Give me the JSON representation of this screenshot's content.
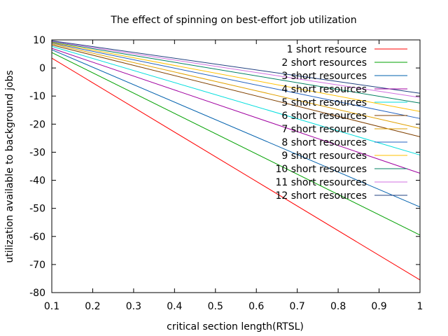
{
  "chart_data": {
    "type": "line",
    "title": "The effect of spinning on best-effort job utilization",
    "xlabel": "critical section length(RTSL)",
    "ylabel": "utilization available to background jobs",
    "xlim": [
      0.1,
      1
    ],
    "ylim": [
      -80,
      10
    ],
    "xticks": [
      "0.1",
      "0.2",
      "0.3",
      "0.4",
      "0.5",
      "0.6",
      "0.7",
      "0.8",
      "0.9",
      "1"
    ],
    "yticks": [
      "10",
      "0",
      "-10",
      "-20",
      "-30",
      "-40",
      "-50",
      "-60",
      "-70",
      "-80"
    ],
    "grid": false,
    "legend_position": "top-right",
    "series": [
      {
        "name": "1 short resource",
        "color": "#ff0000",
        "x": [
          0.1,
          1
        ],
        "y": [
          3.5,
          -75.5
        ]
      },
      {
        "name": "2 short resources",
        "color": "#00a000",
        "x": [
          0.1,
          1
        ],
        "y": [
          5.5,
          -59.5
        ]
      },
      {
        "name": "3 short resources",
        "color": "#0060ad",
        "x": [
          0.1,
          1
        ],
        "y": [
          6.5,
          -49.5
        ]
      },
      {
        "name": "4 short resources",
        "color": "#a000a0",
        "x": [
          0.1,
          1
        ],
        "y": [
          7.0,
          -37.5
        ]
      },
      {
        "name": "5 short resources",
        "color": "#00dddd",
        "x": [
          0.1,
          1
        ],
        "y": [
          7.7,
          -31.0
        ]
      },
      {
        "name": "6 short resources",
        "color": "#804000",
        "x": [
          0.1,
          1
        ],
        "y": [
          8.2,
          -24.5
        ]
      },
      {
        "name": "7 short resources",
        "color": "#e0a000",
        "x": [
          0.1,
          1
        ],
        "y": [
          8.6,
          -21.5
        ]
      },
      {
        "name": "8 short resources",
        "color": "#2060c0",
        "x": [
          0.1,
          1
        ],
        "y": [
          8.9,
          -18.0
        ]
      },
      {
        "name": "9 short resources",
        "color": "#ffc000",
        "x": [
          0.1,
          1
        ],
        "y": [
          9.1,
          -15.5
        ]
      },
      {
        "name": "10 short resources",
        "color": "#008060",
        "x": [
          0.1,
          1
        ],
        "y": [
          9.3,
          -12.5
        ]
      },
      {
        "name": "11 short resources",
        "color": "#d070e0",
        "x": [
          0.1,
          1
        ],
        "y": [
          9.5,
          -10.5
        ]
      },
      {
        "name": "12 short resources",
        "color": "#204080",
        "x": [
          0.1,
          1
        ],
        "y": [
          9.7,
          -9.0
        ]
      }
    ]
  }
}
